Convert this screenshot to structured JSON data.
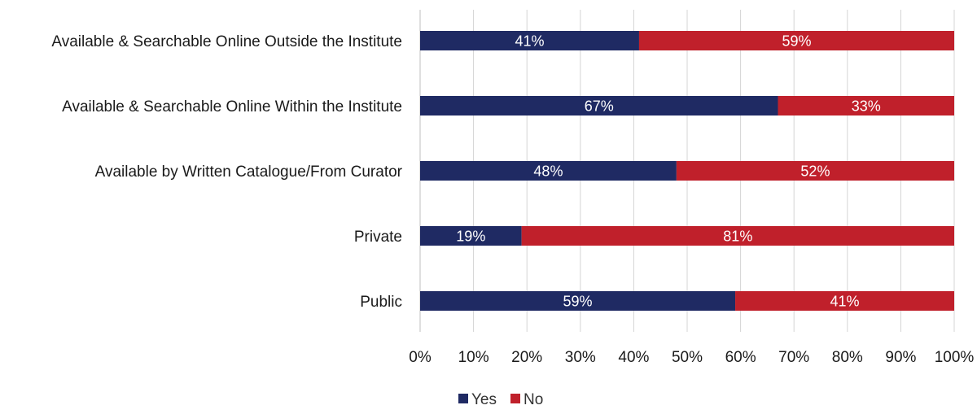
{
  "chart_data": {
    "type": "bar",
    "orientation": "horizontal",
    "stacked": true,
    "percent_stacked": true,
    "categories": [
      "Available & Searchable Online Outside the Institute",
      "Available & Searchable Online Within the Institute",
      "Available by Written Catalogue/From Curator",
      "Private",
      "Public"
    ],
    "series": [
      {
        "name": "Yes",
        "values": [
          41,
          67,
          48,
          19,
          59
        ],
        "color": "#1f2a63"
      },
      {
        "name": "No",
        "values": [
          59,
          33,
          52,
          81,
          41
        ],
        "color": "#c0202b"
      }
    ],
    "data_labels": [
      [
        "41%",
        "67%",
        "48%",
        "19%",
        "59%"
      ],
      [
        "59%",
        "33%",
        "52%",
        "81%",
        "41%"
      ]
    ],
    "x_ticks": [
      "0%",
      "10%",
      "20%",
      "30%",
      "40%",
      "50%",
      "60%",
      "70%",
      "80%",
      "90%",
      "100%"
    ],
    "xlim": [
      0,
      100
    ],
    "grid": true,
    "legend_position": "bottom"
  }
}
